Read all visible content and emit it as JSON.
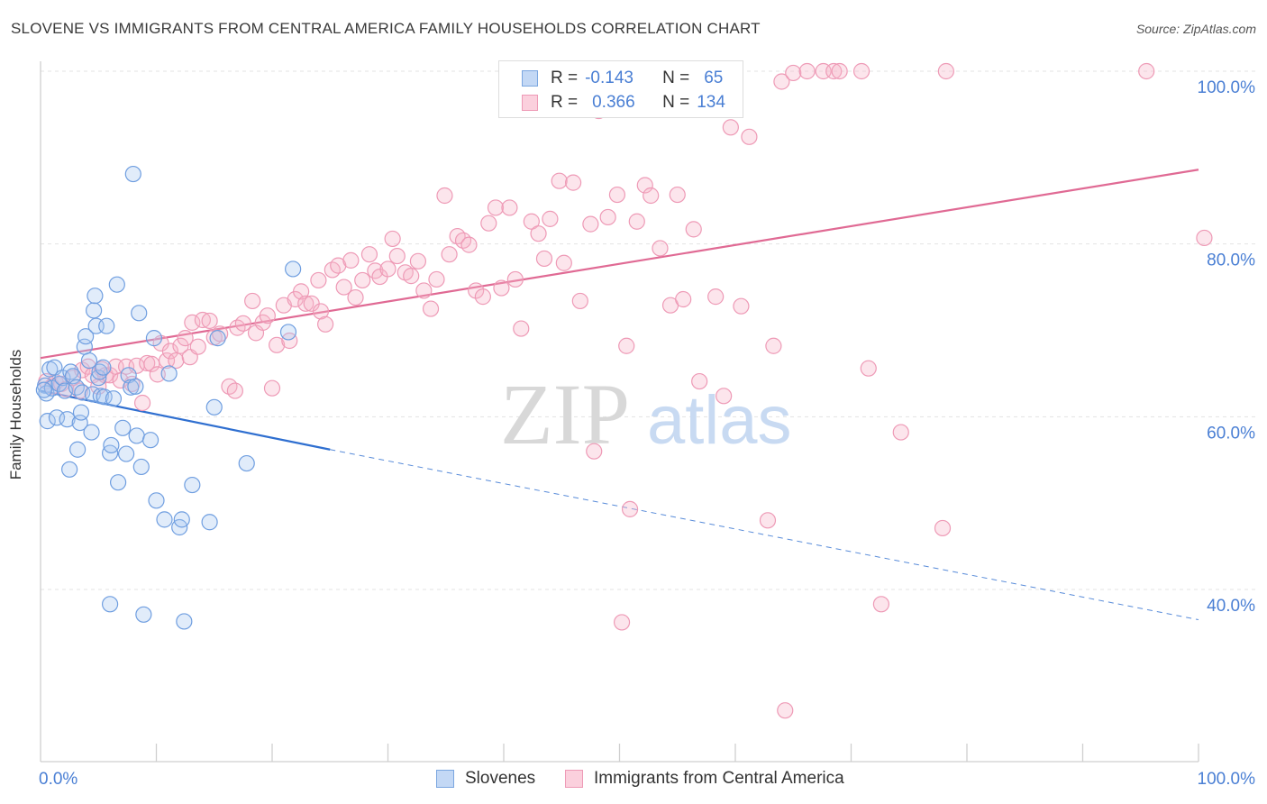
{
  "header": {
    "title": "SLOVENE VS IMMIGRANTS FROM CENTRAL AMERICA FAMILY HOUSEHOLDS CORRELATION CHART",
    "source": "Source: ZipAtlas.com"
  },
  "legend": {
    "r_label": "R =",
    "n_label": "N =",
    "rows": [
      {
        "r": "-0.143",
        "n": "65",
        "color": "#a8c8f0"
      },
      {
        "r": "0.366",
        "n": "134",
        "color": "#f6b5c8"
      }
    ]
  },
  "watermark": {
    "zip": "ZIP",
    "atlas": "atlas"
  },
  "colors": {
    "blue": "#5b8ed8",
    "blue_line": "#2f6fd0",
    "pink": "#e890b0",
    "pink_line": "#e06a94",
    "tick_text": "#4a7fd4"
  },
  "chart_data": {
    "type": "scatter",
    "title": "SLOVENE VS IMMIGRANTS FROM CENTRAL AMERICA FAMILY HOUSEHOLDS CORRELATION CHART",
    "xlabel": "",
    "ylabel": "Family Households",
    "xlim": [
      0,
      100
    ],
    "ylim": [
      20,
      102
    ],
    "x_tick_labels": [
      "0.0%",
      "100.0%"
    ],
    "y_ticks": [
      {
        "value": 100,
        "label": "100.0%"
      },
      {
        "value": 80,
        "label": "80.0%"
      },
      {
        "value": 60,
        "label": "60.0%"
      },
      {
        "value": 40,
        "label": "40.0%"
      }
    ],
    "grid": true,
    "legend_position": "top-center",
    "series": [
      {
        "name": "Slovenes",
        "color": "#5b8ed8",
        "trend": {
          "x": [
            0,
            25
          ],
          "y": [
            63.0,
            56.2
          ],
          "dashed_to": [
            100,
            36.5
          ]
        },
        "points": [
          [
            0.4,
            63.6
          ],
          [
            0.5,
            62.7
          ],
          [
            0.6,
            59.5
          ],
          [
            0.8,
            65.5
          ],
          [
            1.0,
            63.3
          ],
          [
            1.2,
            65.7
          ],
          [
            1.4,
            59.9
          ],
          [
            1.6,
            63.8
          ],
          [
            1.9,
            64.5
          ],
          [
            2.1,
            63.0
          ],
          [
            2.3,
            59.7
          ],
          [
            2.5,
            53.9
          ],
          [
            2.6,
            65.2
          ],
          [
            2.8,
            64.7
          ],
          [
            3.1,
            63.4
          ],
          [
            3.2,
            56.2
          ],
          [
            3.4,
            59.3
          ],
          [
            3.5,
            60.5
          ],
          [
            3.6,
            62.8
          ],
          [
            3.8,
            68.1
          ],
          [
            3.9,
            69.3
          ],
          [
            4.2,
            66.5
          ],
          [
            4.4,
            58.2
          ],
          [
            4.5,
            62.6
          ],
          [
            4.6,
            72.3
          ],
          [
            4.7,
            74.0
          ],
          [
            4.8,
            70.5
          ],
          [
            5.0,
            64.5
          ],
          [
            5.1,
            65.2
          ],
          [
            5.2,
            62.4
          ],
          [
            5.4,
            65.7
          ],
          [
            5.5,
            62.3
          ],
          [
            5.7,
            70.5
          ],
          [
            6.0,
            55.8
          ],
          [
            6.1,
            56.7
          ],
          [
            6.3,
            62.1
          ],
          [
            6.6,
            75.3
          ],
          [
            6.7,
            52.4
          ],
          [
            7.1,
            58.7
          ],
          [
            7.4,
            55.7
          ],
          [
            7.6,
            64.8
          ],
          [
            7.8,
            63.4
          ],
          [
            8.0,
            88.1
          ],
          [
            8.2,
            63.5
          ],
          [
            8.3,
            57.8
          ],
          [
            8.5,
            72.0
          ],
          [
            8.7,
            54.2
          ],
          [
            8.9,
            37.1
          ],
          [
            9.5,
            57.3
          ],
          [
            9.8,
            69.1
          ],
          [
            10.0,
            50.3
          ],
          [
            10.7,
            48.1
          ],
          [
            11.1,
            65.0
          ],
          [
            12.0,
            47.2
          ],
          [
            12.2,
            48.1
          ],
          [
            12.4,
            36.3
          ],
          [
            13.1,
            52.1
          ],
          [
            14.6,
            47.8
          ],
          [
            15.0,
            61.1
          ],
          [
            15.3,
            69.1
          ],
          [
            17.8,
            54.6
          ],
          [
            21.4,
            69.8
          ],
          [
            21.8,
            77.1
          ],
          [
            6.0,
            38.3
          ],
          [
            0.3,
            63.1
          ]
        ]
      },
      {
        "name": "Immigrants from Central America",
        "color": "#e890b0",
        "trend": {
          "x": [
            0,
            100
          ],
          "y": [
            66.8,
            88.6
          ]
        },
        "points": [
          [
            0.5,
            64.1
          ],
          [
            1.0,
            63.5
          ],
          [
            1.3,
            64.0
          ],
          [
            1.8,
            63.8
          ],
          [
            2.2,
            63.2
          ],
          [
            2.8,
            64.5
          ],
          [
            3.4,
            63.0
          ],
          [
            3.6,
            65.4
          ],
          [
            4.1,
            65.8
          ],
          [
            4.5,
            64.8
          ],
          [
            5.0,
            63.5
          ],
          [
            5.3,
            65.5
          ],
          [
            5.6,
            64.8
          ],
          [
            6.0,
            64.8
          ],
          [
            6.5,
            65.8
          ],
          [
            6.9,
            64.2
          ],
          [
            7.4,
            65.8
          ],
          [
            7.9,
            63.8
          ],
          [
            8.3,
            65.9
          ],
          [
            8.8,
            61.6
          ],
          [
            9.2,
            66.2
          ],
          [
            9.6,
            66.1
          ],
          [
            10.1,
            64.9
          ],
          [
            10.4,
            68.5
          ],
          [
            10.9,
            66.5
          ],
          [
            11.2,
            67.6
          ],
          [
            11.7,
            66.5
          ],
          [
            12.1,
            68.2
          ],
          [
            12.5,
            69.1
          ],
          [
            12.9,
            66.9
          ],
          [
            13.1,
            70.9
          ],
          [
            13.6,
            68.1
          ],
          [
            14.0,
            71.2
          ],
          [
            14.6,
            71.1
          ],
          [
            15.0,
            69.2
          ],
          [
            15.5,
            69.6
          ],
          [
            16.3,
            63.5
          ],
          [
            16.8,
            63.0
          ],
          [
            17.0,
            70.3
          ],
          [
            17.5,
            70.8
          ],
          [
            18.3,
            73.4
          ],
          [
            18.6,
            69.7
          ],
          [
            19.2,
            70.9
          ],
          [
            19.6,
            71.7
          ],
          [
            20.0,
            63.3
          ],
          [
            20.4,
            68.3
          ],
          [
            21.0,
            72.9
          ],
          [
            21.5,
            68.8
          ],
          [
            22.0,
            73.6
          ],
          [
            22.5,
            74.5
          ],
          [
            22.9,
            73.1
          ],
          [
            23.4,
            73.1
          ],
          [
            24.0,
            75.8
          ],
          [
            24.2,
            72.2
          ],
          [
            24.6,
            70.7
          ],
          [
            25.2,
            77.0
          ],
          [
            25.7,
            77.5
          ],
          [
            26.2,
            75.0
          ],
          [
            26.8,
            78.1
          ],
          [
            27.2,
            73.8
          ],
          [
            27.8,
            75.8
          ],
          [
            28.4,
            78.8
          ],
          [
            28.9,
            76.9
          ],
          [
            29.3,
            76.2
          ],
          [
            30.0,
            77.1
          ],
          [
            30.4,
            80.6
          ],
          [
            30.8,
            78.6
          ],
          [
            31.5,
            76.7
          ],
          [
            32.0,
            76.3
          ],
          [
            32.6,
            78.0
          ],
          [
            33.1,
            74.6
          ],
          [
            33.7,
            72.5
          ],
          [
            34.2,
            75.9
          ],
          [
            34.9,
            85.6
          ],
          [
            35.3,
            78.8
          ],
          [
            36.0,
            80.9
          ],
          [
            36.5,
            80.4
          ],
          [
            37.0,
            79.9
          ],
          [
            37.6,
            74.6
          ],
          [
            38.2,
            73.9
          ],
          [
            38.7,
            82.4
          ],
          [
            39.3,
            84.2
          ],
          [
            39.8,
            74.9
          ],
          [
            40.5,
            84.2
          ],
          [
            41.0,
            75.9
          ],
          [
            41.5,
            70.2
          ],
          [
            42.4,
            82.6
          ],
          [
            43.0,
            81.2
          ],
          [
            43.5,
            78.3
          ],
          [
            44.0,
            82.9
          ],
          [
            44.8,
            87.3
          ],
          [
            45.2,
            77.8
          ],
          [
            46.0,
            87.1
          ],
          [
            46.6,
            73.4
          ],
          [
            47.5,
            82.3
          ],
          [
            47.8,
            56.0
          ],
          [
            48.2,
            95.4
          ],
          [
            49.0,
            83.1
          ],
          [
            49.8,
            85.7
          ],
          [
            50.2,
            36.2
          ],
          [
            50.6,
            68.2
          ],
          [
            50.9,
            49.3
          ],
          [
            51.5,
            82.6
          ],
          [
            52.2,
            86.8
          ],
          [
            52.7,
            85.6
          ],
          [
            53.5,
            79.5
          ],
          [
            54.4,
            72.9
          ],
          [
            55.0,
            85.7
          ],
          [
            55.5,
            73.6
          ],
          [
            56.4,
            81.7
          ],
          [
            56.9,
            64.1
          ],
          [
            57.2,
            99.8
          ],
          [
            58.3,
            73.9
          ],
          [
            59.0,
            62.4
          ],
          [
            59.6,
            93.5
          ],
          [
            60.5,
            72.8
          ],
          [
            61.2,
            92.4
          ],
          [
            62.8,
            48.0
          ],
          [
            63.3,
            68.2
          ],
          [
            64.0,
            98.8
          ],
          [
            64.3,
            26.0
          ],
          [
            65.0,
            99.8
          ],
          [
            66.2,
            100.0
          ],
          [
            67.6,
            100.0
          ],
          [
            68.5,
            100.0
          ],
          [
            69.0,
            100.0
          ],
          [
            70.9,
            100.0
          ],
          [
            71.5,
            65.6
          ],
          [
            72.6,
            38.3
          ],
          [
            74.3,
            58.2
          ],
          [
            77.9,
            47.1
          ],
          [
            78.2,
            100.0
          ],
          [
            95.5,
            100.0
          ],
          [
            100.5,
            80.7
          ]
        ]
      }
    ]
  }
}
